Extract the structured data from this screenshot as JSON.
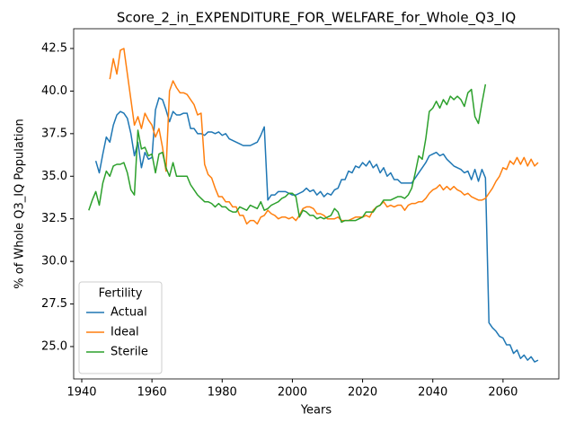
{
  "chart_data": {
    "type": "line",
    "title": "Score_2_in_EXPENDITURE_FOR_WELFARE_for_Whole_Q3_IQ",
    "xlabel": "Years",
    "ylabel": "% of Whole Q3_IQ Population",
    "legend_title": "Fertility",
    "legend_loc": "lower left",
    "grid": false,
    "xlim": [
      1937.7,
      2075.9
    ],
    "ylim": [
      23.1,
      43.66
    ],
    "xticks": [
      1940,
      1960,
      1980,
      2000,
      2020,
      2040,
      2060
    ],
    "yticks": [
      {
        "value": 25,
        "label": "25.0"
      },
      {
        "value": 27.5,
        "label": "27.5"
      },
      {
        "value": 30,
        "label": "30.0"
      },
      {
        "value": 32.5,
        "label": "32.5"
      },
      {
        "value": 35,
        "label": "35.0"
      },
      {
        "value": 37.5,
        "label": "37.5"
      },
      {
        "value": 40,
        "label": "40.0"
      },
      {
        "value": 42.5,
        "label": "42.5"
      }
    ],
    "x": [
      1942,
      1943,
      1944,
      1945,
      1946,
      1947,
      1948,
      1949,
      1950,
      1951,
      1952,
      1953,
      1954,
      1955,
      1956,
      1957,
      1958,
      1959,
      1960,
      1961,
      1962,
      1963,
      1964,
      1965,
      1966,
      1967,
      1968,
      1969,
      1970,
      1971,
      1972,
      1973,
      1974,
      1975,
      1976,
      1977,
      1978,
      1979,
      1980,
      1981,
      1982,
      1983,
      1984,
      1985,
      1986,
      1987,
      1988,
      1989,
      1990,
      1991,
      1992,
      1993,
      1994,
      1995,
      1996,
      1997,
      1998,
      1999,
      2000,
      2001,
      2002,
      2003,
      2004,
      2005,
      2006,
      2007,
      2008,
      2009,
      2010,
      2011,
      2012,
      2013,
      2014,
      2015,
      2016,
      2017,
      2018,
      2019,
      2020,
      2021,
      2022,
      2023,
      2024,
      2025,
      2026,
      2027,
      2028,
      2029,
      2030,
      2031,
      2032,
      2033,
      2034,
      2035,
      2036,
      2037,
      2038,
      2039,
      2040,
      2041,
      2042,
      2043,
      2044,
      2045,
      2046,
      2047,
      2048,
      2049,
      2050,
      2051,
      2052,
      2053,
      2054,
      2055,
      2056,
      2057,
      2058,
      2059,
      2060,
      2061,
      2062,
      2063,
      2064,
      2065,
      2066,
      2067,
      2068,
      2069,
      2070
    ],
    "series": [
      {
        "name": "Actual",
        "color": "#1f77b4",
        "values": [
          null,
          null,
          35.9,
          35.2,
          36.3,
          37.3,
          37.0,
          38.0,
          38.6,
          38.8,
          38.7,
          38.4,
          37.5,
          36.2,
          37.0,
          35.5,
          36.4,
          36.0,
          36.1,
          38.9,
          39.6,
          39.5,
          38.9,
          38.2,
          38.8,
          38.6,
          38.6,
          38.7,
          38.7,
          37.8,
          37.8,
          37.5,
          37.5,
          37.4,
          37.6,
          37.6,
          37.5,
          37.6,
          37.4,
          37.5,
          37.2,
          37.1,
          37.0,
          36.9,
          36.8,
          36.8,
          36.8,
          36.9,
          37.0,
          37.4,
          37.9,
          33.6,
          33.9,
          33.9,
          34.1,
          34.1,
          34.1,
          34.0,
          33.9,
          33.9,
          34.0,
          34.1,
          34.3,
          34.1,
          34.2,
          33.9,
          34.1,
          33.8,
          34.0,
          33.9,
          34.2,
          34.3,
          34.8,
          34.8,
          35.3,
          35.2,
          35.6,
          35.5,
          35.8,
          35.6,
          35.9,
          35.5,
          35.7,
          35.2,
          35.5,
          35.0,
          35.2,
          34.8,
          34.8,
          34.6,
          34.6,
          34.6,
          34.6,
          34.9,
          35.2,
          35.5,
          35.8,
          36.2,
          36.3,
          36.4,
          36.2,
          36.3,
          36.0,
          35.8,
          35.6,
          35.5,
          35.4,
          35.2,
          35.3,
          34.8,
          35.4,
          34.7,
          35.4,
          34.9,
          26.4,
          26.1,
          25.9,
          25.6,
          25.5,
          25.1,
          25.1,
          24.6,
          24.8,
          24.3,
          24.5,
          24.2,
          24.4,
          24.1,
          24.2
        ]
      },
      {
        "name": "Ideal",
        "color": "#ff7f0e",
        "values": [
          null,
          null,
          null,
          null,
          null,
          null,
          40.7,
          41.9,
          41.0,
          42.4,
          42.5,
          41.0,
          39.5,
          38.0,
          38.5,
          37.8,
          38.7,
          38.3,
          38.0,
          37.3,
          37.8,
          36.7,
          35.3,
          40.0,
          40.6,
          40.2,
          39.9,
          39.9,
          39.8,
          39.5,
          39.2,
          38.6,
          38.7,
          35.7,
          35.1,
          34.9,
          34.3,
          33.8,
          33.8,
          33.5,
          33.5,
          33.2,
          33.2,
          32.7,
          32.7,
          32.2,
          32.4,
          32.4,
          32.2,
          32.6,
          32.7,
          33.0,
          32.8,
          32.7,
          32.5,
          32.6,
          32.6,
          32.5,
          32.6,
          32.4,
          32.7,
          33.1,
          33.2,
          33.2,
          33.1,
          32.8,
          32.8,
          32.7,
          32.5,
          32.5,
          32.5,
          32.6,
          32.4,
          32.4,
          32.4,
          32.5,
          32.6,
          32.6,
          32.6,
          32.7,
          32.6,
          33.0,
          33.2,
          33.3,
          33.5,
          33.2,
          33.3,
          33.2,
          33.3,
          33.3,
          33.0,
          33.3,
          33.4,
          33.4,
          33.5,
          33.5,
          33.7,
          34.0,
          34.2,
          34.3,
          34.5,
          34.2,
          34.4,
          34.2,
          34.4,
          34.2,
          34.1,
          33.9,
          34.0,
          33.8,
          33.7,
          33.6,
          33.6,
          33.7,
          34.0,
          34.3,
          34.7,
          35.0,
          35.5,
          35.4,
          35.9,
          35.7,
          36.1,
          35.7,
          36.1,
          35.6,
          36.0,
          35.6,
          35.8
        ]
      },
      {
        "name": "Sterile",
        "color": "#2ca02c",
        "values": [
          33.0,
          33.6,
          34.1,
          33.3,
          34.6,
          35.3,
          35.0,
          35.6,
          35.7,
          35.7,
          35.8,
          35.2,
          34.2,
          33.9,
          37.7,
          36.6,
          36.7,
          36.2,
          36.3,
          35.2,
          36.3,
          36.4,
          35.5,
          35.0,
          35.8,
          35.0,
          35.0,
          35.0,
          35.0,
          34.5,
          34.2,
          33.9,
          33.7,
          33.5,
          33.5,
          33.4,
          33.2,
          33.4,
          33.2,
          33.2,
          33.0,
          32.9,
          32.9,
          33.2,
          33.1,
          33.0,
          33.3,
          33.2,
          33.1,
          33.5,
          33.0,
          33.1,
          33.3,
          33.4,
          33.5,
          33.7,
          33.8,
          34.0,
          34.0,
          33.8,
          32.6,
          33.0,
          32.9,
          32.7,
          32.7,
          32.5,
          32.6,
          32.5,
          32.6,
          32.7,
          33.1,
          32.9,
          32.3,
          32.4,
          32.4,
          32.4,
          32.4,
          32.5,
          32.6,
          32.9,
          32.9,
          32.9,
          33.2,
          33.3,
          33.6,
          33.6,
          33.6,
          33.7,
          33.8,
          33.8,
          33.7,
          33.9,
          34.3,
          35.2,
          36.2,
          36.0,
          37.2,
          38.8,
          39.0,
          39.4,
          39.0,
          39.5,
          39.2,
          39.7,
          39.5,
          39.7,
          39.5,
          39.1,
          39.9,
          40.1,
          38.5,
          38.1,
          39.3,
          40.4,
          null,
          null,
          null,
          null,
          null,
          null,
          null,
          null,
          null,
          null,
          null,
          null,
          null,
          null,
          null
        ]
      }
    ]
  }
}
